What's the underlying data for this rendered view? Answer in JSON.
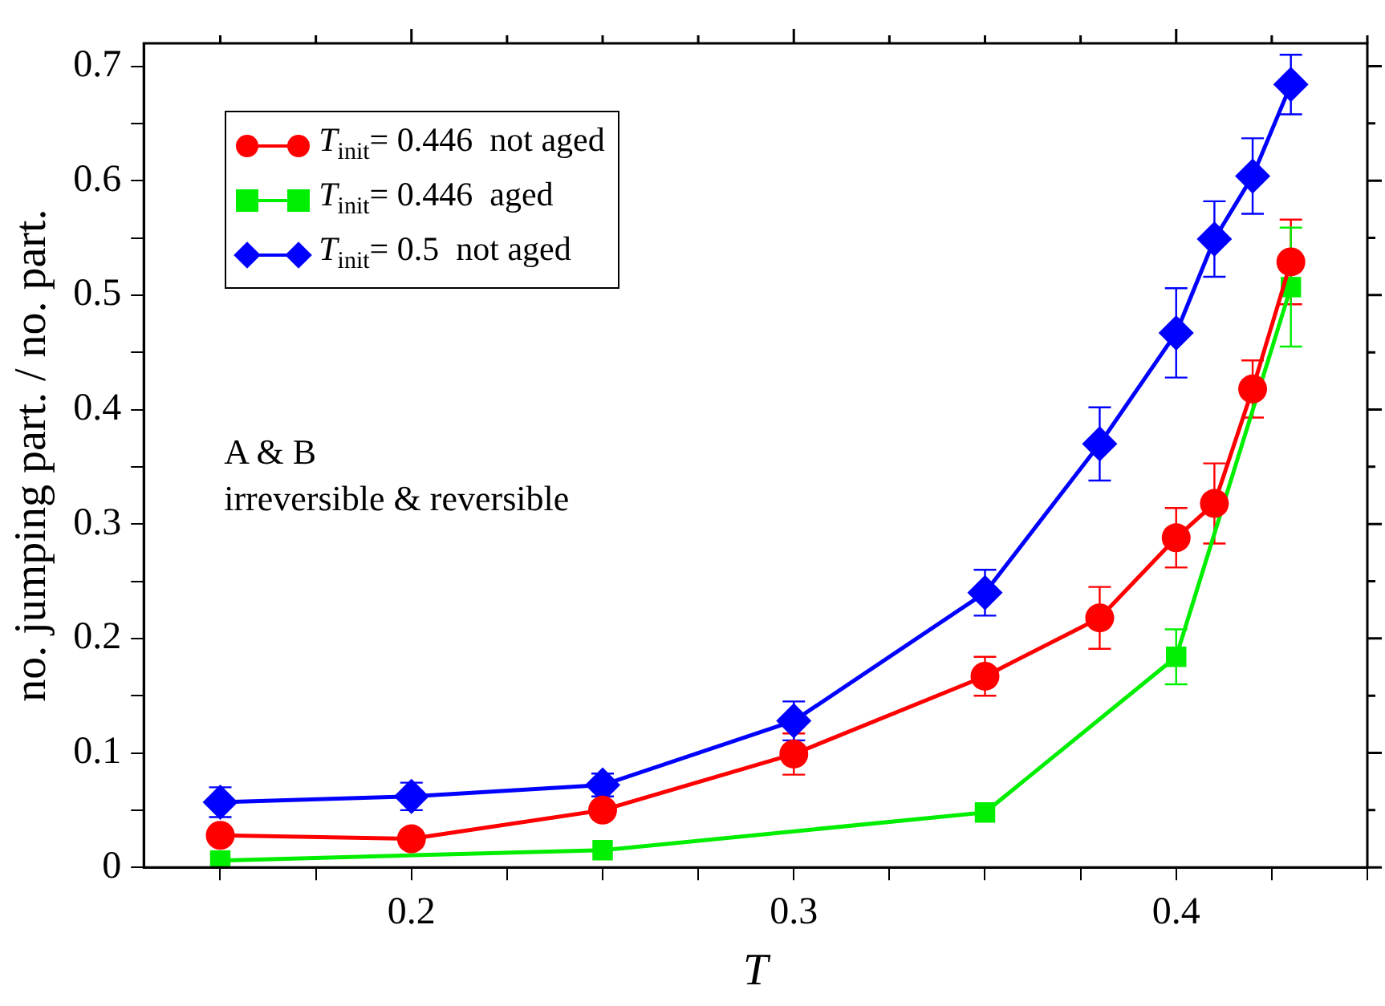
{
  "chart_data": {
    "type": "line",
    "xlabel": "T",
    "ylabel": "no. jumping part. / no. part.",
    "xlim": [
      0.13,
      0.45
    ],
    "xticks": [
      {
        "value": 0.15,
        "label": null
      },
      {
        "value": 0.175,
        "label": null
      },
      {
        "value": 0.2,
        "label": "0.2"
      },
      {
        "value": 0.225,
        "label": null
      },
      {
        "value": 0.25,
        "label": null
      },
      {
        "value": 0.275,
        "label": null
      },
      {
        "value": 0.3,
        "label": "0.3"
      },
      {
        "value": 0.325,
        "label": null
      },
      {
        "value": 0.35,
        "label": null
      },
      {
        "value": 0.375,
        "label": null
      },
      {
        "value": 0.4,
        "label": "0.4"
      },
      {
        "value": 0.425,
        "label": null
      },
      {
        "value": 0.45,
        "label": null
      }
    ],
    "ylim": [
      0,
      0.72
    ],
    "yticks": [
      0,
      {
        "value": 0.05,
        "label": null
      },
      0.1,
      {
        "value": 0.15,
        "label": null
      },
      0.2,
      {
        "value": 0.25,
        "label": null
      },
      0.3,
      {
        "value": 0.35,
        "label": null
      },
      0.4,
      {
        "value": 0.45,
        "label": null
      },
      0.5,
      {
        "value": 0.55,
        "label": null
      },
      0.6,
      {
        "value": 0.65,
        "label": null
      },
      0.7
    ],
    "grid": false,
    "legend": "top left",
    "line_style": "solid",
    "annotations": [
      "A & B",
      "irreversible & reversible"
    ],
    "series": [
      {
        "name": "T$_{init}$= 0.446  not aged",
        "color": "#ff0000",
        "marker": "circle",
        "x": [
          0.15,
          0.2,
          0.25,
          0.3,
          0.35,
          0.38,
          0.4,
          0.41,
          0.42,
          0.43
        ],
        "values": [
          0.028,
          0.025,
          0.05,
          0.099,
          0.167,
          0.218,
          0.288,
          0.318,
          0.418,
          0.529
        ],
        "errors": [
          null,
          null,
          null,
          0.018,
          0.017,
          0.027,
          0.026,
          0.035,
          0.025,
          0.037
        ]
      },
      {
        "name": "T$_{init}$= 0.446  aged",
        "color": "#00ee00",
        "marker": "square",
        "x": [
          0.15,
          0.25,
          0.35,
          0.4,
          0.43
        ],
        "values": [
          0.006,
          0.015,
          0.048,
          0.184,
          0.507
        ],
        "errors": [
          null,
          null,
          null,
          0.024,
          0.052
        ]
      },
      {
        "name": "T$_{init}$= 0.5  not aged",
        "color": "#0000ff",
        "marker": "diamond",
        "x": [
          0.15,
          0.2,
          0.25,
          0.3,
          0.35,
          0.38,
          0.4,
          0.41,
          0.42,
          0.43
        ],
        "values": [
          0.057,
          0.062,
          0.072,
          0.128,
          0.24,
          0.37,
          0.467,
          0.549,
          0.604,
          0.684
        ],
        "errors": [
          0.013,
          0.012,
          0.01,
          0.017,
          0.02,
          0.032,
          0.039,
          0.033,
          0.033,
          0.026
        ]
      }
    ]
  }
}
